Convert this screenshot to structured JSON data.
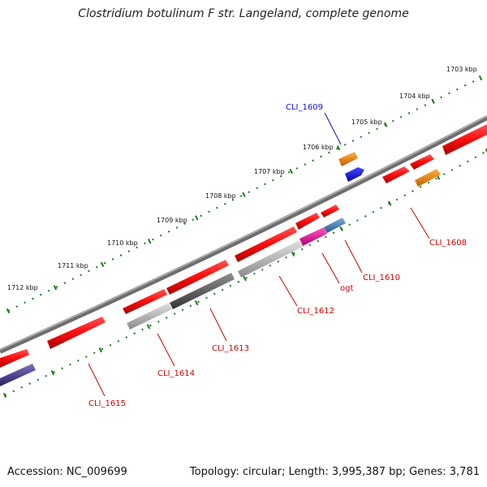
{
  "title": "Clostridium botulinum F str. Langeland, complete genome",
  "footer": {
    "accession": "Accession: NC_009699",
    "summary": "Topology: circular; Length: 3,995,387 bp; Genes: 3,781"
  },
  "ruler_labels": [
    "1703 kbp",
    "1704 kbp",
    "1705 kbp",
    "1706 kbp",
    "1707 kbp",
    "1708 kbp",
    "1709 kbp",
    "1710 kbp",
    "1711 kbp",
    "1712 kbp"
  ],
  "gene_labels": [
    {
      "text": "CLI_1609",
      "color": "#1010cc"
    },
    {
      "text": "CLI_1608",
      "color": "#cc0000"
    },
    {
      "text": "CLI_1610",
      "color": "#cc0000"
    },
    {
      "text": "ogt",
      "color": "#cc0000"
    },
    {
      "text": "CLI_1612",
      "color": "#cc0000"
    },
    {
      "text": "CLI_1613",
      "color": "#cc0000"
    },
    {
      "text": "CLI_1614",
      "color": "#cc0000"
    },
    {
      "text": "CLI_1615",
      "color": "#cc0000"
    }
  ],
  "colors": {
    "backbone": "#7a7a7a",
    "gene_red": "#ee1111",
    "gene_orange": "#f08a00",
    "gene_blue": "#1a1aee",
    "gene_magenta": "#e8199a",
    "gene_steel": "#4a86b8",
    "gene_silver": "#b0b0b0",
    "gene_darkgray": "#5a5a5a",
    "gene_purple": "#4a3f8f",
    "ruler": "#1a7a1a"
  }
}
